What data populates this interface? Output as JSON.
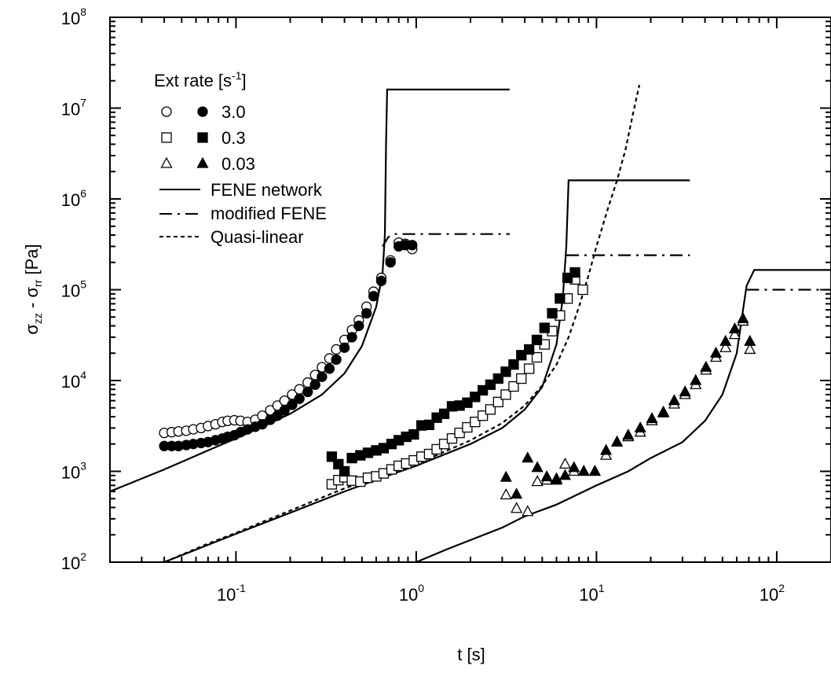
{
  "chart_data": {
    "type": "scatter",
    "xscale": "log",
    "yscale": "log",
    "xlim": [
      0.02,
      200
    ],
    "ylim": [
      100,
      100000000
    ],
    "grid": false,
    "legend_position": "top-left",
    "xlabel": {
      "main": "t  [s]"
    },
    "ylabel": {
      "s1": "σ",
      "sub1": "zz",
      "mid": " - ",
      "s2": "σ",
      "sub2": "rr",
      "unit": " [Pa]"
    },
    "x_ticks": [
      {
        "value": 0.1,
        "base": "10",
        "exp": "-1"
      },
      {
        "value": 1,
        "base": "10",
        "exp": "0"
      },
      {
        "value": 10,
        "base": "10",
        "exp": "1"
      },
      {
        "value": 100,
        "base": "10",
        "exp": "2"
      }
    ],
    "y_ticks": [
      {
        "value": 100,
        "base": "10",
        "exp": "2"
      },
      {
        "value": 1000,
        "base": "10",
        "exp": "3"
      },
      {
        "value": 10000,
        "base": "10",
        "exp": "4"
      },
      {
        "value": 100000,
        "base": "10",
        "exp": "5"
      },
      {
        "value": 1000000,
        "base": "10",
        "exp": "6"
      },
      {
        "value": 10000000,
        "base": "10",
        "exp": "7"
      },
      {
        "value": 100000000,
        "base": "10",
        "exp": "8"
      }
    ],
    "legend": {
      "title": {
        "main": "Ext rate [s",
        "sup": "-1",
        "end": "]"
      },
      "marker_rows": [
        {
          "label": "3.0",
          "open": "circle",
          "filled": "circle"
        },
        {
          "label": "0.3",
          "open": "square",
          "filled": "square"
        },
        {
          "label": "0.03",
          "open": "triangle",
          "filled": "triangle"
        }
      ],
      "line_rows": [
        {
          "label": "FENE network",
          "style": "solid"
        },
        {
          "label": "modified FENE",
          "style": "dashdot"
        },
        {
          "label": "Quasi-linear",
          "style": "dotted"
        }
      ]
    },
    "series": [
      {
        "marker": "circle",
        "fill": "open",
        "points": [
          [
            0.04,
            2650
          ],
          [
            0.044,
            2700
          ],
          [
            0.048,
            2750
          ],
          [
            0.053,
            2800
          ],
          [
            0.058,
            2900
          ],
          [
            0.064,
            3000
          ],
          [
            0.07,
            3150
          ],
          [
            0.077,
            3300
          ],
          [
            0.084,
            3500
          ],
          [
            0.09,
            3600
          ],
          [
            0.098,
            3650
          ],
          [
            0.106,
            3600
          ],
          [
            0.116,
            3500
          ],
          [
            0.128,
            3700
          ],
          [
            0.14,
            4100
          ],
          [
            0.155,
            4700
          ],
          [
            0.17,
            5300
          ],
          [
            0.186,
            6000
          ],
          [
            0.205,
            7000
          ],
          [
            0.225,
            8000
          ],
          [
            0.25,
            9500
          ],
          [
            0.275,
            11500
          ],
          [
            0.3,
            14000
          ],
          [
            0.33,
            17500
          ],
          [
            0.36,
            22000
          ],
          [
            0.4,
            28000
          ],
          [
            0.44,
            36000
          ],
          [
            0.48,
            46000
          ],
          [
            0.53,
            65000
          ],
          [
            0.58,
            95000
          ],
          [
            0.64,
            135000
          ],
          [
            0.72,
            210000
          ],
          [
            0.8,
            330000
          ],
          [
            0.87,
            320000
          ],
          [
            0.95,
            280000
          ]
        ]
      },
      {
        "marker": "circle",
        "fill": "filled",
        "points": [
          [
            0.04,
            1900
          ],
          [
            0.044,
            1900
          ],
          [
            0.048,
            1900
          ],
          [
            0.053,
            1950
          ],
          [
            0.058,
            2000
          ],
          [
            0.064,
            2050
          ],
          [
            0.07,
            2100
          ],
          [
            0.077,
            2200
          ],
          [
            0.084,
            2300
          ],
          [
            0.09,
            2400
          ],
          [
            0.098,
            2500
          ],
          [
            0.106,
            2700
          ],
          [
            0.116,
            2900
          ],
          [
            0.128,
            3100
          ],
          [
            0.14,
            3300
          ],
          [
            0.155,
            3700
          ],
          [
            0.17,
            4100
          ],
          [
            0.186,
            4700
          ],
          [
            0.205,
            5400
          ],
          [
            0.225,
            6300
          ],
          [
            0.25,
            7500
          ],
          [
            0.275,
            9000
          ],
          [
            0.3,
            11000
          ],
          [
            0.33,
            13500
          ],
          [
            0.36,
            17000
          ],
          [
            0.4,
            23000
          ],
          [
            0.44,
            30000
          ],
          [
            0.48,
            40000
          ],
          [
            0.53,
            55000
          ],
          [
            0.58,
            85000
          ],
          [
            0.64,
            125000
          ],
          [
            0.72,
            200000
          ],
          [
            0.8,
            300000
          ],
          [
            0.87,
            310000
          ],
          [
            0.95,
            310000
          ]
        ]
      },
      {
        "marker": "square",
        "fill": "open",
        "points": [
          [
            0.34,
            720
          ],
          [
            0.37,
            800
          ],
          [
            0.4,
            860
          ],
          [
            0.44,
            790
          ],
          [
            0.49,
            770
          ],
          [
            0.54,
            850
          ],
          [
            0.6,
            880
          ],
          [
            0.66,
            950
          ],
          [
            0.73,
            1050
          ],
          [
            0.8,
            1150
          ],
          [
            0.88,
            1220
          ],
          [
            0.97,
            1320
          ],
          [
            1.07,
            1450
          ],
          [
            1.18,
            1550
          ],
          [
            1.3,
            1750
          ],
          [
            1.43,
            2000
          ],
          [
            1.58,
            2300
          ],
          [
            1.74,
            2650
          ],
          [
            1.92,
            3050
          ],
          [
            2.12,
            3500
          ],
          [
            2.34,
            4100
          ],
          [
            2.58,
            4800
          ],
          [
            2.85,
            5800
          ],
          [
            3.14,
            7000
          ],
          [
            3.47,
            8600
          ],
          [
            3.83,
            10500
          ],
          [
            4.23,
            13500
          ],
          [
            4.67,
            18000
          ],
          [
            5.15,
            25000
          ],
          [
            5.68,
            35000
          ],
          [
            6.27,
            52000
          ],
          [
            6.91,
            80000
          ],
          [
            7.6,
            130000
          ],
          [
            8.4,
            100000
          ]
        ]
      },
      {
        "marker": "square",
        "fill": "filled",
        "points": [
          [
            0.34,
            1450
          ],
          [
            0.37,
            1200
          ],
          [
            0.4,
            1000
          ],
          [
            0.44,
            1400
          ],
          [
            0.49,
            1500
          ],
          [
            0.54,
            1600
          ],
          [
            0.6,
            1700
          ],
          [
            0.66,
            1800
          ],
          [
            0.73,
            2000
          ],
          [
            0.8,
            2200
          ],
          [
            0.88,
            2400
          ],
          [
            0.97,
            2550
          ],
          [
            1.07,
            3200
          ],
          [
            1.18,
            3250
          ],
          [
            1.3,
            3900
          ],
          [
            1.43,
            4300
          ],
          [
            1.58,
            5200
          ],
          [
            1.74,
            5300
          ],
          [
            1.92,
            5700
          ],
          [
            2.12,
            6600
          ],
          [
            2.34,
            7800
          ],
          [
            2.58,
            9000
          ],
          [
            2.85,
            10500
          ],
          [
            3.14,
            12500
          ],
          [
            3.47,
            15000
          ],
          [
            3.83,
            19000
          ],
          [
            4.23,
            22000
          ],
          [
            4.67,
            28000
          ],
          [
            5.15,
            38000
          ],
          [
            5.68,
            55000
          ],
          [
            6.27,
            80000
          ],
          [
            6.91,
            135000
          ],
          [
            7.6,
            155000
          ]
        ]
      },
      {
        "marker": "triangle",
        "fill": "open",
        "points": [
          [
            3.15,
            550
          ],
          [
            3.6,
            390
          ],
          [
            4.15,
            360
          ],
          [
            4.7,
            770
          ],
          [
            5.3,
            800
          ],
          [
            6.0,
            830
          ],
          [
            6.7,
            1200
          ],
          [
            7.5,
            1000
          ],
          [
            8.5,
            1000
          ],
          [
            9.8,
            1000
          ],
          [
            11.3,
            1500
          ],
          [
            13.0,
            2100
          ],
          [
            15.0,
            2400
          ],
          [
            17.5,
            2700
          ],
          [
            20.3,
            3600
          ],
          [
            23.5,
            4400
          ],
          [
            27.0,
            5500
          ],
          [
            31.0,
            7000
          ],
          [
            35.5,
            9000
          ],
          [
            40.5,
            13000
          ],
          [
            46.0,
            18000
          ],
          [
            52.0,
            23000
          ],
          [
            58.5,
            32000
          ],
          [
            65.0,
            45000
          ],
          [
            71.0,
            22000
          ]
        ]
      },
      {
        "marker": "triangle",
        "fill": "filled",
        "points": [
          [
            3.15,
            860
          ],
          [
            3.6,
            560
          ],
          [
            4.15,
            1400
          ],
          [
            4.7,
            1100
          ],
          [
            5.3,
            870
          ],
          [
            6.0,
            800
          ],
          [
            6.7,
            900
          ],
          [
            7.5,
            1100
          ],
          [
            8.5,
            1000
          ],
          [
            9.8,
            1000
          ],
          [
            11.3,
            1700
          ],
          [
            13.0,
            2100
          ],
          [
            15.0,
            2500
          ],
          [
            17.5,
            3000
          ],
          [
            20.3,
            3800
          ],
          [
            23.5,
            4500
          ],
          [
            27.0,
            6000
          ],
          [
            31.0,
            7500
          ],
          [
            35.5,
            10000
          ],
          [
            40.5,
            14000
          ],
          [
            46.0,
            20000
          ],
          [
            52.0,
            27000
          ],
          [
            58.5,
            37000
          ],
          [
            65.0,
            48000
          ],
          [
            71.0,
            27000
          ]
        ]
      },
      {
        "line": "solid",
        "points": [
          [
            0.02,
            600
          ],
          [
            0.04,
            1050
          ],
          [
            0.07,
            1700
          ],
          [
            0.1,
            2300
          ],
          [
            0.15,
            3300
          ],
          [
            0.2,
            4300
          ],
          [
            0.3,
            7000
          ],
          [
            0.4,
            12000
          ],
          [
            0.5,
            24000
          ],
          [
            0.6,
            65000
          ],
          [
            0.65,
            150000
          ],
          [
            0.67,
            400000
          ],
          [
            0.68,
            4000000
          ],
          [
            0.69,
            16000000
          ],
          [
            3.3,
            16000000
          ]
        ]
      },
      {
        "line": "solid",
        "points": [
          [
            0.04,
            100
          ],
          [
            0.07,
            155
          ],
          [
            0.1,
            205
          ],
          [
            0.2,
            350
          ],
          [
            0.4,
            600
          ],
          [
            0.7,
            900
          ],
          [
            1,
            1150
          ],
          [
            2,
            2000
          ],
          [
            3,
            3000
          ],
          [
            4,
            4800
          ],
          [
            5,
            8500
          ],
          [
            6,
            25000
          ],
          [
            6.5,
            80000
          ],
          [
            6.8,
            300000
          ],
          [
            7,
            1600000
          ],
          [
            33,
            1600000
          ]
        ]
      },
      {
        "line": "solid",
        "points": [
          [
            1,
            100
          ],
          [
            1.5,
            140
          ],
          [
            2,
            175
          ],
          [
            3,
            240
          ],
          [
            4,
            320
          ],
          [
            6,
            430
          ],
          [
            10,
            700
          ],
          [
            15,
            1000
          ],
          [
            20,
            1400
          ],
          [
            30,
            2100
          ],
          [
            40,
            3600
          ],
          [
            50,
            7000
          ],
          [
            60,
            20000
          ],
          [
            65,
            60000
          ],
          [
            68,
            110000
          ],
          [
            75,
            165000
          ],
          [
            200,
            165000
          ]
        ]
      },
      {
        "line": "dashdot",
        "points": [
          [
            0.65,
            300000
          ],
          [
            0.7,
            380000
          ],
          [
            0.76,
            410000
          ],
          [
            3.3,
            410000
          ]
        ]
      },
      {
        "line": "dashdot",
        "points": [
          [
            6.8,
            240000
          ],
          [
            7,
            240000
          ],
          [
            33,
            240000
          ]
        ]
      },
      {
        "line": "dashdot",
        "points": [
          [
            68,
            100000
          ],
          [
            75,
            100000
          ],
          [
            200,
            100000
          ]
        ]
      },
      {
        "line": "dotted",
        "points": [
          [
            0.04,
            100
          ],
          [
            0.07,
            160
          ],
          [
            0.1,
            210
          ],
          [
            0.2,
            370
          ],
          [
            0.4,
            650
          ],
          [
            0.7,
            950
          ],
          [
            1,
            1200
          ],
          [
            2,
            2200
          ],
          [
            3,
            3400
          ],
          [
            4,
            5300
          ],
          [
            5,
            8800
          ],
          [
            6,
            15000
          ],
          [
            7,
            30000
          ],
          [
            8,
            65000
          ],
          [
            9,
            140000
          ],
          [
            10,
            300000
          ],
          [
            11.5,
            750000
          ],
          [
            13,
            1600000
          ],
          [
            14.5,
            3500000
          ],
          [
            16,
            9000000
          ],
          [
            17.3,
            18000000
          ]
        ]
      }
    ]
  }
}
